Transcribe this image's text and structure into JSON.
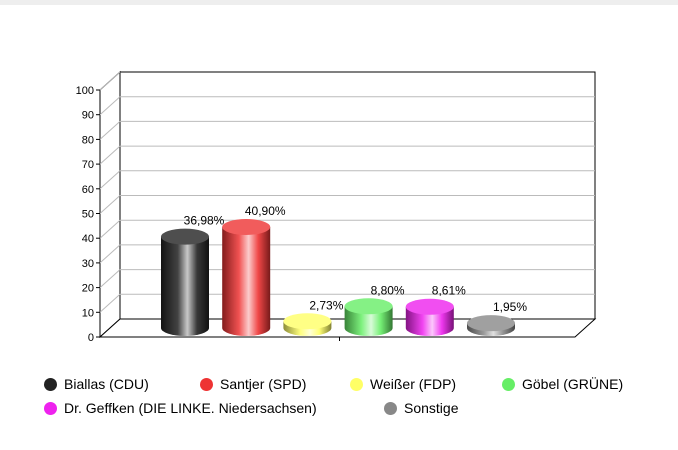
{
  "chart_data": {
    "type": "bar",
    "categories": [
      "Biallas (CDU)",
      "Santjer (SPD)",
      "Weißer (FDP)",
      "Göbel (GRÜNE)",
      "Dr. Geffken (DIE LINKE. Niedersachsen)",
      "Sonstige"
    ],
    "values": [
      36.98,
      40.9,
      2.73,
      8.8,
      8.61,
      1.95
    ],
    "data_labels": [
      "36,98%",
      "40,90%",
      "2,73%",
      "8,80%",
      "8,61%",
      "1,95%"
    ],
    "colors": [
      "#222222",
      "#ee3333",
      "#ffff66",
      "#66ee66",
      "#ee22ee",
      "#888888"
    ],
    "ylim": [
      0,
      100
    ],
    "yticks": [
      0,
      10,
      20,
      30,
      40,
      50,
      60,
      70,
      80,
      90,
      100
    ],
    "ytick_labels": [
      "0",
      "10",
      "20",
      "30",
      "40",
      "50",
      "60",
      "70",
      "80",
      "90",
      "100"
    ],
    "grid": true,
    "legend_position": "bottom",
    "title": "",
    "xlabel": "",
    "ylabel": ""
  }
}
